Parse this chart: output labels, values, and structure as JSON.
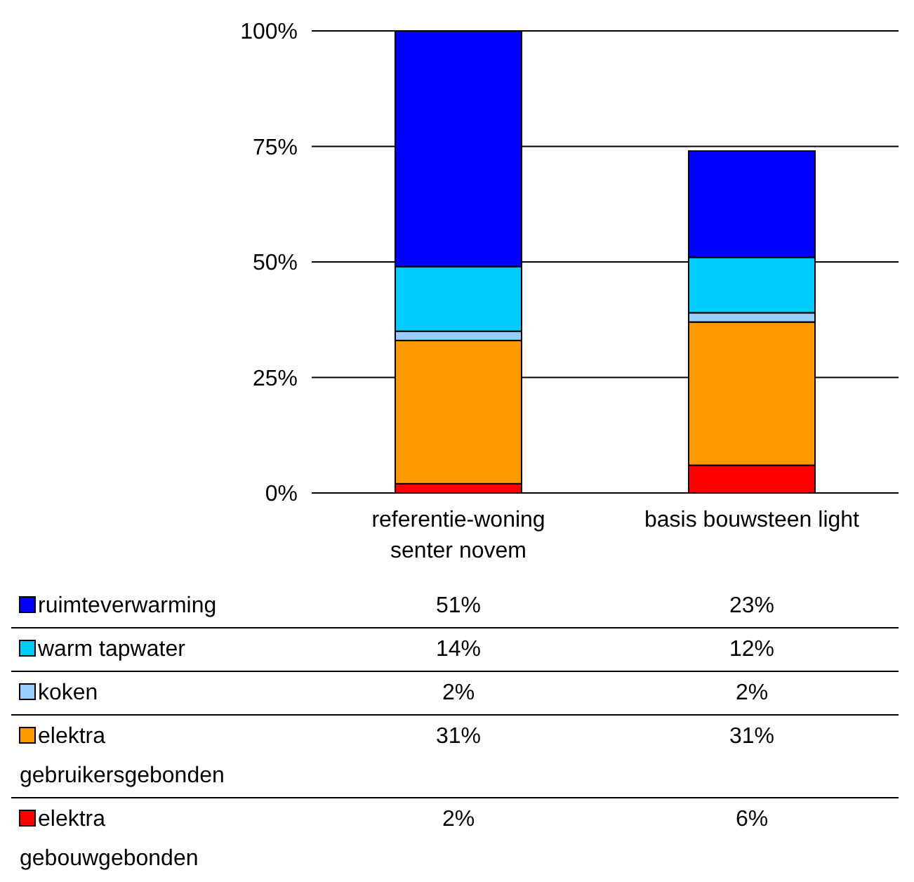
{
  "chart_data": {
    "type": "bar",
    "stacked": true,
    "categories": [
      "referentie-woning senter novem",
      "basis bouwsteen light"
    ],
    "series": [
      {
        "name": "elektra gebouwgebonden",
        "color": "#ff0000",
        "values": [
          2,
          6
        ],
        "value_labels": [
          "2%",
          "6%"
        ]
      },
      {
        "name": "elektra gebruikersgebonden",
        "color": "#ff9900",
        "values": [
          31,
          31
        ],
        "value_labels": [
          "31%",
          "31%"
        ]
      },
      {
        "name": "koken",
        "color": "#99ccff",
        "values": [
          2,
          2
        ],
        "value_labels": [
          "2%",
          "2%"
        ]
      },
      {
        "name": "warm tapwater",
        "color": "#00ccff",
        "values": [
          14,
          12
        ],
        "value_labels": [
          "14%",
          "12%"
        ]
      },
      {
        "name": "ruimteverwarming",
        "color": "#0000ff",
        "values": [
          51,
          23
        ],
        "value_labels": [
          "51%",
          "23%"
        ]
      }
    ],
    "ylim": [
      0,
      100
    ],
    "yticks": [
      {
        "value": 0,
        "label": "0%"
      },
      {
        "value": 25,
        "label": "25%"
      },
      {
        "value": 50,
        "label": "50%"
      },
      {
        "value": 75,
        "label": "75%"
      },
      {
        "value": 100,
        "label": "100%"
      }
    ],
    "grid": "y",
    "legend": "bottom"
  }
}
